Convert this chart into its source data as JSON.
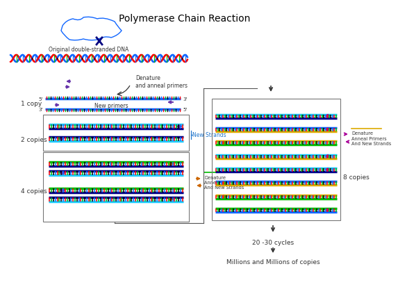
{
  "title": "Polymerase Chain Reaction",
  "title_fontsize": 10,
  "bg_color": "#ffffff",
  "text_color": "#000000",
  "primer_purple": "#6633aa",
  "primer_orange": "#cc6600",
  "primer_magenta": "#aa0099",
  "labels": {
    "orig_dna": "Original double-stranded DNA",
    "denature": "Denature\nand anneal primers",
    "new_primers": "New primers",
    "new_strands": "New Strands",
    "denature2": "Denature\nAnneal Primers\nAnd New Strands",
    "denature3": "Denature\nAnneal Primers\nAnd New Strands",
    "1copy": "1 copy",
    "2copies": "2 copies",
    "4copies": "4 copies",
    "8copies": "8 copies",
    "cycles": "20 -30 cycles",
    "millions": "Millions and Millions of copies"
  }
}
